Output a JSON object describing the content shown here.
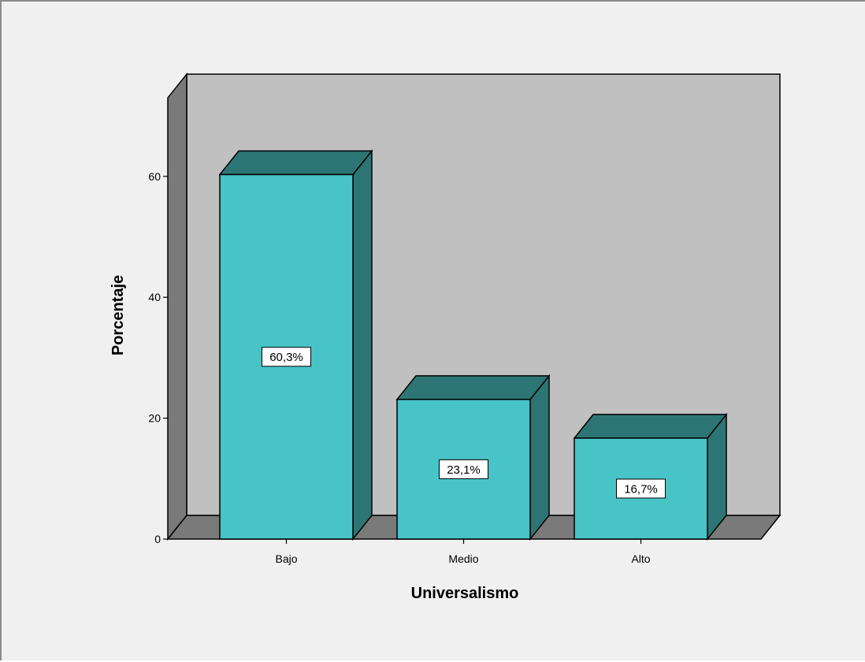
{
  "chart_data": {
    "type": "bar",
    "style": "3d",
    "categories": [
      "Bajo",
      "Medio",
      "Alto"
    ],
    "values": [
      60.3,
      23.1,
      16.7
    ],
    "data_labels": [
      "60,3%",
      "23,1%",
      "16,7%"
    ],
    "title": "",
    "xlabel": "Universalismo",
    "ylabel": "Porcentaje",
    "ylim": [
      0,
      73
    ],
    "yticks": [
      0,
      20,
      40,
      60
    ],
    "grid": false,
    "legend": "none",
    "colors": {
      "bar_front": "#48c3c6",
      "bar_side": "#2d7575",
      "bar_top": "#2d7575",
      "back_wall": "#c0c0c0",
      "side_wall": "#7a7a7a",
      "floor": "#7a7a7a",
      "background": "#f0f0f0"
    }
  }
}
